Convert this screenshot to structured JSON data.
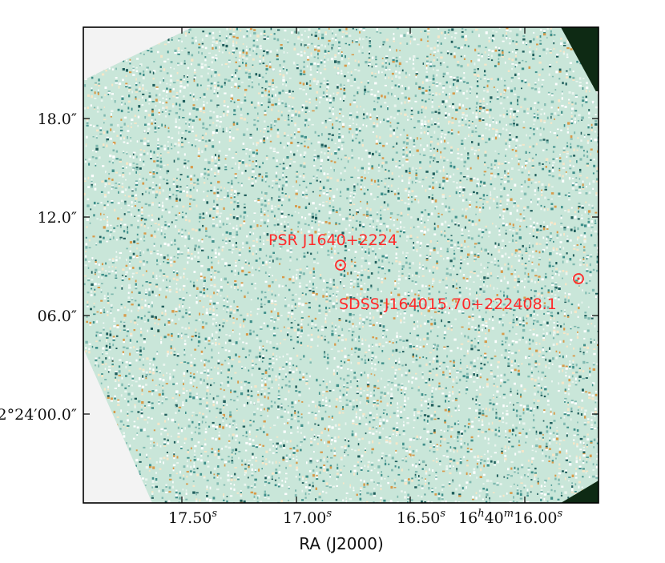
{
  "figure": {
    "xlabel": "RA (J2000)",
    "x_ticks": [
      {
        "base": "17.50",
        "sup": "s"
      },
      {
        "base": "17.00",
        "sup": "s"
      },
      {
        "base": "16.50",
        "sup": "s"
      },
      {
        "base": "16",
        "sup": "h",
        "base2": "40",
        "sup2": "m",
        "base3": "16.00",
        "sup3": "s"
      }
    ],
    "y_ticks": [
      "18.0″",
      "12.0″",
      "06.0″",
      "2°24′00.0″"
    ],
    "sources": [
      {
        "name": "PSR J1640+2224"
      },
      {
        "name": "SDSS J164015.70+222408.1"
      }
    ],
    "colors": {
      "marker": "#ff2a2a",
      "sky_background": "#c9e6d9",
      "outside_coverage": "#f3f3f3",
      "corner_dark": "#0e2a14"
    }
  }
}
